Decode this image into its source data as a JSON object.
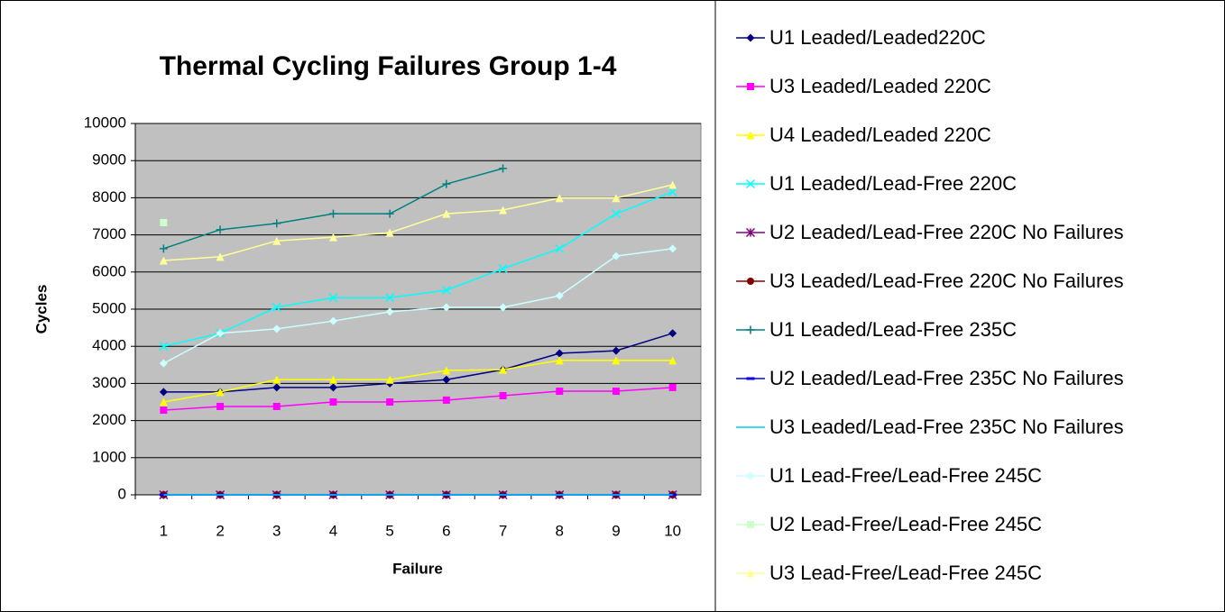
{
  "chart_data": {
    "type": "line",
    "title": "Thermal Cycling Failures Group 1-4",
    "x_label": "Failure",
    "y_label": "Cycles",
    "categories": [
      "1",
      "2",
      "3",
      "4",
      "5",
      "6",
      "7",
      "8",
      "9",
      "10"
    ],
    "ylim": [
      0,
      10000
    ],
    "yticks": [
      0,
      1000,
      2000,
      3000,
      4000,
      5000,
      6000,
      7000,
      8000,
      9000,
      10000
    ],
    "grid": true,
    "legend": "right",
    "series": [
      {
        "name": "U1 Leaded/Leaded220C",
        "color": "#000080",
        "marker": "diamond",
        "values": [
          2770,
          2770,
          2890,
          2890,
          3000,
          3100,
          3370,
          3810,
          3880,
          4350
        ]
      },
      {
        "name": "U3 Leaded/Leaded 220C",
        "color": "#ff00ff",
        "marker": "square",
        "values": [
          2280,
          2380,
          2380,
          2500,
          2500,
          2550,
          2670,
          2790,
          2790,
          2890
        ]
      },
      {
        "name": "U4 Leaded/Leaded 220C",
        "color": "#ffff00",
        "marker": "triangle",
        "values": [
          2500,
          2770,
          3100,
          3100,
          3100,
          3350,
          3370,
          3620,
          3620,
          3620
        ]
      },
      {
        "name": "U1 Leaded/Lead-Free 220C",
        "color": "#00ffff",
        "marker": "x",
        "values": [
          4000,
          4350,
          5050,
          5310,
          5310,
          5510,
          6090,
          6630,
          7570,
          8160
        ]
      },
      {
        "name": "U2 Leaded/Lead-Free 220C No Failures",
        "color": "#800080",
        "marker": "star",
        "values": [
          0,
          0,
          0,
          0,
          0,
          0,
          0,
          0,
          0,
          0
        ]
      },
      {
        "name": "U3 Leaded/Lead-Free 220C No Failures",
        "color": "#800000",
        "marker": "circle",
        "values": [
          0,
          0,
          0,
          0,
          0,
          0,
          0,
          0,
          0,
          0
        ]
      },
      {
        "name": "U1 Leaded/Lead-Free 235C",
        "color": "#008080",
        "marker": "plus",
        "values": [
          6630,
          7140,
          7310,
          7570,
          7570,
          8370,
          8790,
          null,
          null,
          null
        ]
      },
      {
        "name": "U2 Leaded/Lead-Free 235C No Failures",
        "color": "#0000ff",
        "marker": "dash",
        "values": [
          0,
          0,
          0,
          0,
          0,
          0,
          0,
          0,
          0,
          0
        ]
      },
      {
        "name": "U3 Leaded/Lead-Free 235C No Failures",
        "color": "#00ccff",
        "marker": "none",
        "values": [
          0,
          0,
          0,
          0,
          0,
          0,
          0,
          0,
          0,
          0
        ]
      },
      {
        "name": "U1 Lead-Free/Lead-Free 245C",
        "color": "#ccffff",
        "marker": "diamond",
        "values": [
          3540,
          4350,
          4470,
          4680,
          4930,
          5050,
          5050,
          5360,
          6430,
          6630
        ]
      },
      {
        "name": "U2 Lead-Free/Lead-Free 245C",
        "color": "#ccffcc",
        "marker": "square",
        "values": [
          7330,
          null,
          null,
          null,
          null,
          null,
          null,
          null,
          null,
          null
        ]
      },
      {
        "name": "U3 Lead-Free/Lead-Free 245C",
        "color": "#ffff99",
        "marker": "triangle",
        "values": [
          6310,
          6410,
          6840,
          6940,
          7060,
          7570,
          7670,
          7990,
          7990,
          8350
        ]
      }
    ]
  }
}
